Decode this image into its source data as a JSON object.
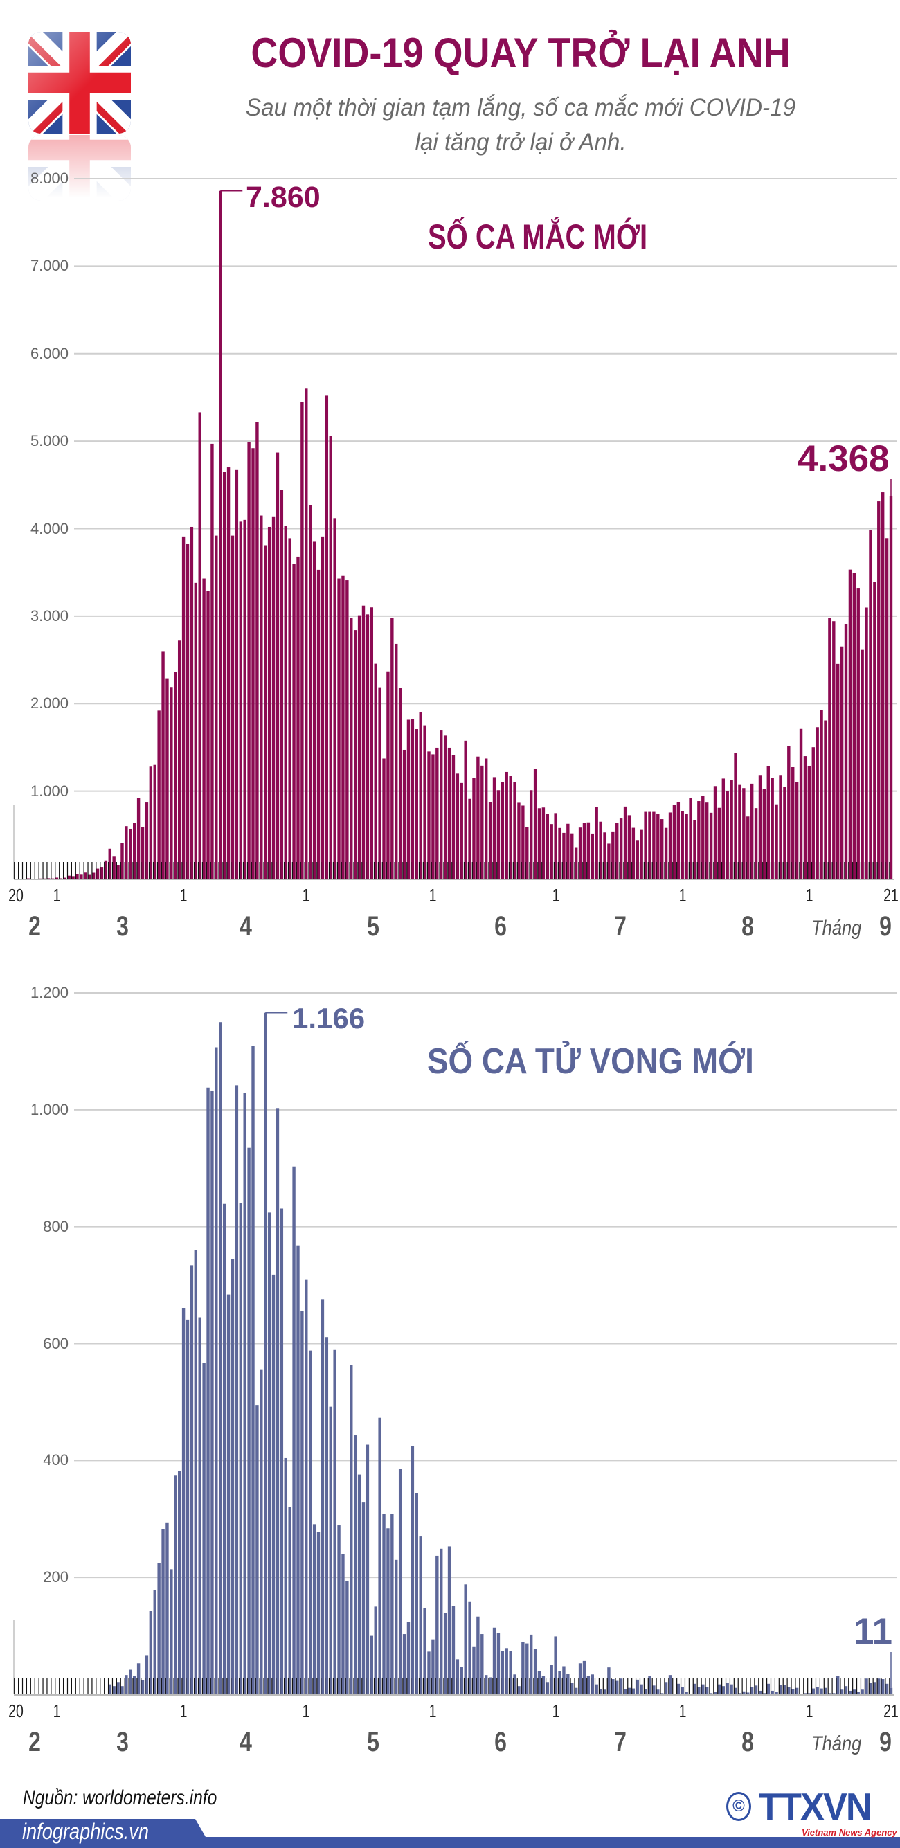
{
  "header": {
    "title": "COVID-19 QUAY TRỞ LẠI ANH",
    "subtitle_line1": "Sau một thời gian tạm lắng, số ca mắc mới COVID-19",
    "subtitle_line2": "lại tăng trở lại ở Anh.",
    "flag_icon": "united-kingdom-flag"
  },
  "colors": {
    "cases": "#8c0a52",
    "cases_text": "#8b0d55",
    "deaths": "#5d6799",
    "deaths_text": "#5b6599",
    "footer_band": "#3d55a5",
    "logo_blue": "#2e4ea3",
    "logo_red": "#d41e2a"
  },
  "chart_data": [
    {
      "type": "bar",
      "title": "SỐ CA MẮC MỚI",
      "x_range": [
        "20/2",
        "21/9"
      ],
      "ylim": [
        0,
        8000
      ],
      "y_tick_values": [
        1000,
        2000,
        3000,
        4000,
        5000,
        6000,
        7000,
        8000
      ],
      "y_tick_labels": [
        "1.000",
        "2.000",
        "3.000",
        "4.000",
        "5.000",
        "6.000",
        "7.000",
        "8.000"
      ],
      "x_tick_labels": [
        "20",
        "1",
        "1",
        "1",
        "1",
        "1",
        "1",
        "1",
        "21"
      ],
      "month_labels": [
        "2",
        "3",
        "4",
        "5",
        "6",
        "7",
        "8"
      ],
      "last_month_prefix": "Tháng",
      "last_month": "9",
      "grid": true,
      "annotations": {
        "peak": "7.860",
        "last": "4.368"
      },
      "values": [
        0,
        0,
        0,
        4,
        0,
        0,
        2,
        2,
        5,
        3,
        12,
        4,
        11,
        34,
        29,
        48,
        45,
        69,
        43,
        67,
        114,
        134,
        208,
        342,
        251,
        152,
        407,
        600,
        570,
        640,
        920,
        590,
        870,
        1280,
        1300,
        1920,
        2600,
        2290,
        2190,
        2360,
        2720,
        3910,
        3830,
        4020,
        3380,
        5330,
        3430,
        3290,
        4970,
        3920,
        7860,
        4650,
        4700,
        3920,
        4670,
        4080,
        4100,
        4990,
        4920,
        5220,
        4150,
        3810,
        4020,
        4140,
        4870,
        4440,
        4030,
        3890,
        3600,
        3680,
        5450,
        5600,
        4270,
        3850,
        3530,
        3910,
        5520,
        5060,
        4120,
        3430,
        3460,
        3410,
        2980,
        2840,
        3010,
        3120,
        3020,
        3100,
        2456,
        2187,
        1373,
        2368,
        2976,
        2683,
        2179,
        1472,
        1816,
        1821,
        1709,
        1899,
        1752,
        1453,
        1421,
        1496,
        1693,
        1635,
        1496,
        1411,
        1200,
        1093,
        1576,
        912,
        1149,
        1395,
        1291,
        1373,
        877,
        1160,
        1011,
        1101,
        1219,
        1171,
        1107,
        867,
        835,
        592,
        1011,
        1251,
        805,
        813,
        736,
        624,
        749,
        579,
        523,
        627,
        517,
        352,
        584,
        635,
        643,
        515,
        819,
        651,
        528,
        400,
        539,
        640,
        688,
        824,
        725,
        581,
        441,
        557,
        763,
        763,
        763,
        740,
        680,
        580,
        756,
        842,
        876,
        769,
        740,
        922,
        667,
        886,
        945,
        869,
        753,
        1058,
        809,
        1144,
        1005,
        1124,
        1436,
        1071,
        1035,
        710,
        1085,
        806,
        1177,
        1028,
        1284,
        1154,
        849,
        1177,
        1045,
        1519,
        1274,
        1104,
        1711,
        1400,
        1290,
        1502,
        1731,
        1930,
        1808,
        2978,
        2942,
        2454,
        2653,
        2912,
        3532,
        3493,
        3323,
        2614,
        3098,
        3983,
        3390,
        4312,
        4415,
        3891,
        4368
      ]
    },
    {
      "type": "bar",
      "title": "SỐ CA TỬ VONG MỚI",
      "x_range": [
        "20/2",
        "21/9"
      ],
      "ylim": [
        0,
        1200
      ],
      "y_tick_values": [
        200,
        400,
        600,
        800,
        1000,
        1200
      ],
      "y_tick_labels": [
        "200",
        "400",
        "600",
        "800",
        "1.000",
        "1.200"
      ],
      "x_tick_labels": [
        "20",
        "1",
        "1",
        "1",
        "1",
        "1",
        "1",
        "1",
        "21"
      ],
      "month_labels": [
        "2",
        "3",
        "4",
        "5",
        "6",
        "7",
        "8"
      ],
      "last_month_prefix": "Tháng",
      "last_month": "9",
      "grid": true,
      "annotations": {
        "peak": "1.166",
        "last": "11"
      },
      "values": [
        0,
        0,
        0,
        0,
        0,
        0,
        0,
        0,
        0,
        0,
        0,
        0,
        0,
        0,
        0,
        0,
        0,
        0,
        0,
        1,
        0,
        1,
        0,
        17,
        14,
        21,
        14,
        33,
        42,
        32,
        53,
        24,
        67,
        143,
        178,
        225,
        283,
        294,
        214,
        374,
        382,
        661,
        641,
        734,
        760,
        645,
        567,
        1038,
        1033,
        1107,
        1150,
        839,
        684,
        744,
        1042,
        840,
        1029,
        935,
        1109,
        495,
        556,
        1166,
        824,
        718,
        1003,
        831,
        404,
        320,
        903,
        768,
        656,
        710,
        588,
        291,
        278,
        676,
        611,
        492,
        589,
        289,
        240,
        194,
        563,
        443,
        376,
        328,
        427,
        100,
        150,
        473,
        309,
        284,
        308,
        230,
        386,
        103,
        124,
        425,
        344,
        270,
        148,
        73,
        94,
        237,
        249,
        139,
        253,
        151,
        60,
        47,
        188,
        159,
        82,
        133,
        103,
        33,
        29,
        114,
        105,
        74,
        79,
        74,
        34,
        14,
        89,
        87,
        102,
        78,
        40,
        31,
        21,
        50,
        99,
        40,
        48,
        35,
        19,
        11,
        53,
        57,
        32,
        34,
        17,
        9,
        8,
        46,
        26,
        23,
        27,
        9,
        11,
        10,
        25,
        17,
        9,
        31,
        15,
        8,
        2,
        21,
        33,
        1,
        18,
        13,
        4,
        0,
        18,
        13,
        17,
        12,
        2,
        4,
        17,
        14,
        19,
        17,
        11,
        2,
        5,
        3,
        12,
        15,
        6,
        2,
        18,
        6,
        4,
        16,
        16,
        12,
        9,
        11,
        1,
        2,
        2,
        10,
        13,
        10,
        11,
        2,
        2,
        31,
        8,
        14,
        6,
        8,
        4,
        8,
        27,
        20,
        21,
        27,
        26,
        18,
        11
      ]
    }
  ],
  "footer": {
    "source": "Nguồn: worldometers.info",
    "site": "infographics.vn",
    "logo_copyright": "©",
    "logo_text": "TTXVN",
    "logo_subtitle": "Vietnam News Agency"
  }
}
